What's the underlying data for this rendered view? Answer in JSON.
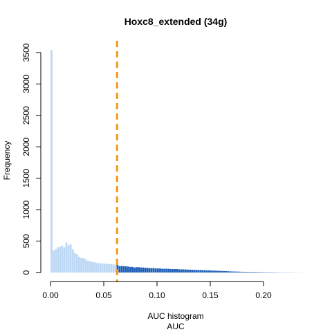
{
  "chart_data": {
    "type": "bar",
    "title": "Hoxc8_extended (34g)",
    "xlabel": "AUC histogram",
    "xlabel2": "AUC",
    "ylabel": "Frequency",
    "xlim": [
      0,
      0.24
    ],
    "ylim": [
      0,
      3600
    ],
    "x_ticks": [
      0.0,
      0.05,
      0.1,
      0.15,
      0.2
    ],
    "x_tick_labels": [
      "0.00",
      "0.05",
      "0.10",
      "0.15",
      "0.20"
    ],
    "y_ticks": [
      0,
      500,
      1000,
      1500,
      2000,
      2500,
      3000,
      3500
    ],
    "y_tick_labels": [
      "0",
      "500",
      "1000",
      "1500",
      "2000",
      "2500",
      "3000",
      "3500"
    ],
    "bin_width": 0.002,
    "bin_start": 0,
    "threshold": 0.0625,
    "colors": {
      "below_threshold": "#bcd8f5",
      "above_threshold": "#1f5fb8",
      "threshold_line": "#f39a1e"
    },
    "counts": [
      3540,
      350,
      370,
      400,
      410,
      430,
      400,
      480,
      430,
      450,
      370,
      310,
      290,
      250,
      230,
      230,
      210,
      190,
      180,
      170,
      165,
      155,
      150,
      150,
      145,
      140,
      140,
      135,
      135,
      130,
      125,
      120,
      100,
      105,
      100,
      100,
      95,
      90,
      90,
      80,
      85,
      85,
      80,
      80,
      75,
      75,
      70,
      70,
      70,
      65,
      65,
      65,
      60,
      60,
      60,
      60,
      55,
      55,
      55,
      55,
      50,
      50,
      50,
      48,
      46,
      45,
      44,
      42,
      42,
      40,
      40,
      38,
      36,
      35,
      34,
      32,
      30,
      30,
      28,
      26,
      25,
      24,
      22,
      20,
      18,
      17,
      16,
      15,
      14,
      12,
      12,
      11,
      10,
      10,
      9,
      9,
      8,
      8,
      7,
      7,
      6,
      6,
      5,
      5,
      5,
      4,
      4,
      3,
      3,
      3,
      2,
      2,
      2,
      2,
      1,
      1,
      1,
      1
    ]
  }
}
